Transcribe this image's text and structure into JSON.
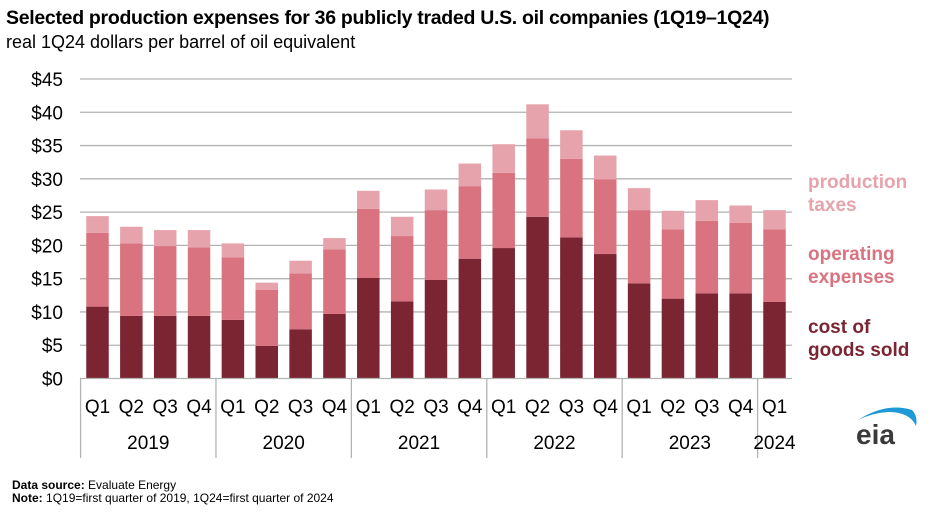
{
  "title": "Selected production expenses for 36 publicly traded U.S. oil companies (1Q19–1Q24)",
  "subtitle": "real 1Q24 dollars per barrel of oil equivalent",
  "footer": {
    "source_label": "Data source:",
    "source_value": "Evaluate Energy",
    "note_label": "Note:",
    "note_value": "1Q19=first quarter of 2019, 1Q24=first quarter of 2024"
  },
  "logo_text": "eia",
  "colors": {
    "cost_of_goods_sold": "#7b2432",
    "operating_expenses": "#d8737f",
    "production_taxes": "#e6a3ab",
    "grid": "#b3b3b3",
    "logo_arc": "#1f9ad6",
    "logo_text": "#3a3a3a"
  },
  "chart_data": {
    "type": "bar",
    "stacked": true,
    "title": "Selected production expenses for 36 publicly traded U.S. oil companies (1Q19–1Q24)",
    "subtitle": "real 1Q24 dollars per barrel of oil equivalent",
    "xlabel": "",
    "ylabel": "",
    "ylim": [
      0,
      45
    ],
    "yticks": [
      0,
      5,
      10,
      15,
      20,
      25,
      30,
      35,
      40,
      45
    ],
    "ytick_labels": [
      "$0",
      "$5",
      "$10",
      "$15",
      "$20",
      "$25",
      "$30",
      "$35",
      "$40",
      "$45"
    ],
    "grid": true,
    "legend_position": "right",
    "categories": [
      "Q1",
      "Q2",
      "Q3",
      "Q4",
      "Q1",
      "Q2",
      "Q3",
      "Q4",
      "Q1",
      "Q2",
      "Q3",
      "Q4",
      "Q1",
      "Q2",
      "Q3",
      "Q4",
      "Q1",
      "Q2",
      "Q3",
      "Q4",
      "Q1"
    ],
    "year_groups": [
      {
        "label": "2019",
        "count": 4
      },
      {
        "label": "2020",
        "count": 4
      },
      {
        "label": "2021",
        "count": 4
      },
      {
        "label": "2022",
        "count": 4
      },
      {
        "label": "2023",
        "count": 4
      },
      {
        "label": "2024",
        "count": 1
      }
    ],
    "series": [
      {
        "name": "cost of goods sold",
        "legend_label": [
          "cost of",
          "goods sold"
        ],
        "color": "#7b2432",
        "values": [
          10.8,
          9.4,
          9.4,
          9.4,
          8.8,
          4.9,
          7.4,
          9.7,
          15.1,
          11.6,
          14.8,
          18.0,
          19.6,
          24.3,
          21.2,
          18.7,
          14.3,
          12.0,
          12.8,
          12.8,
          11.5
        ]
      },
      {
        "name": "operating expenses",
        "legend_label": [
          "operating",
          "expenses"
        ],
        "color": "#d8737f",
        "values": [
          11.1,
          10.9,
          10.5,
          10.3,
          9.4,
          8.4,
          8.4,
          9.7,
          10.4,
          9.8,
          10.5,
          10.9,
          11.3,
          11.8,
          11.8,
          11.2,
          11.0,
          10.4,
          10.9,
          10.6,
          10.9
        ]
      },
      {
        "name": "production taxes",
        "legend_label": [
          "production",
          "taxes"
        ],
        "color": "#e6a3ab",
        "values": [
          2.5,
          2.5,
          2.4,
          2.6,
          2.1,
          1.1,
          1.9,
          1.7,
          2.7,
          2.9,
          3.1,
          3.4,
          4.3,
          5.1,
          4.3,
          3.6,
          3.3,
          2.8,
          3.1,
          2.6,
          2.9
        ]
      }
    ]
  }
}
